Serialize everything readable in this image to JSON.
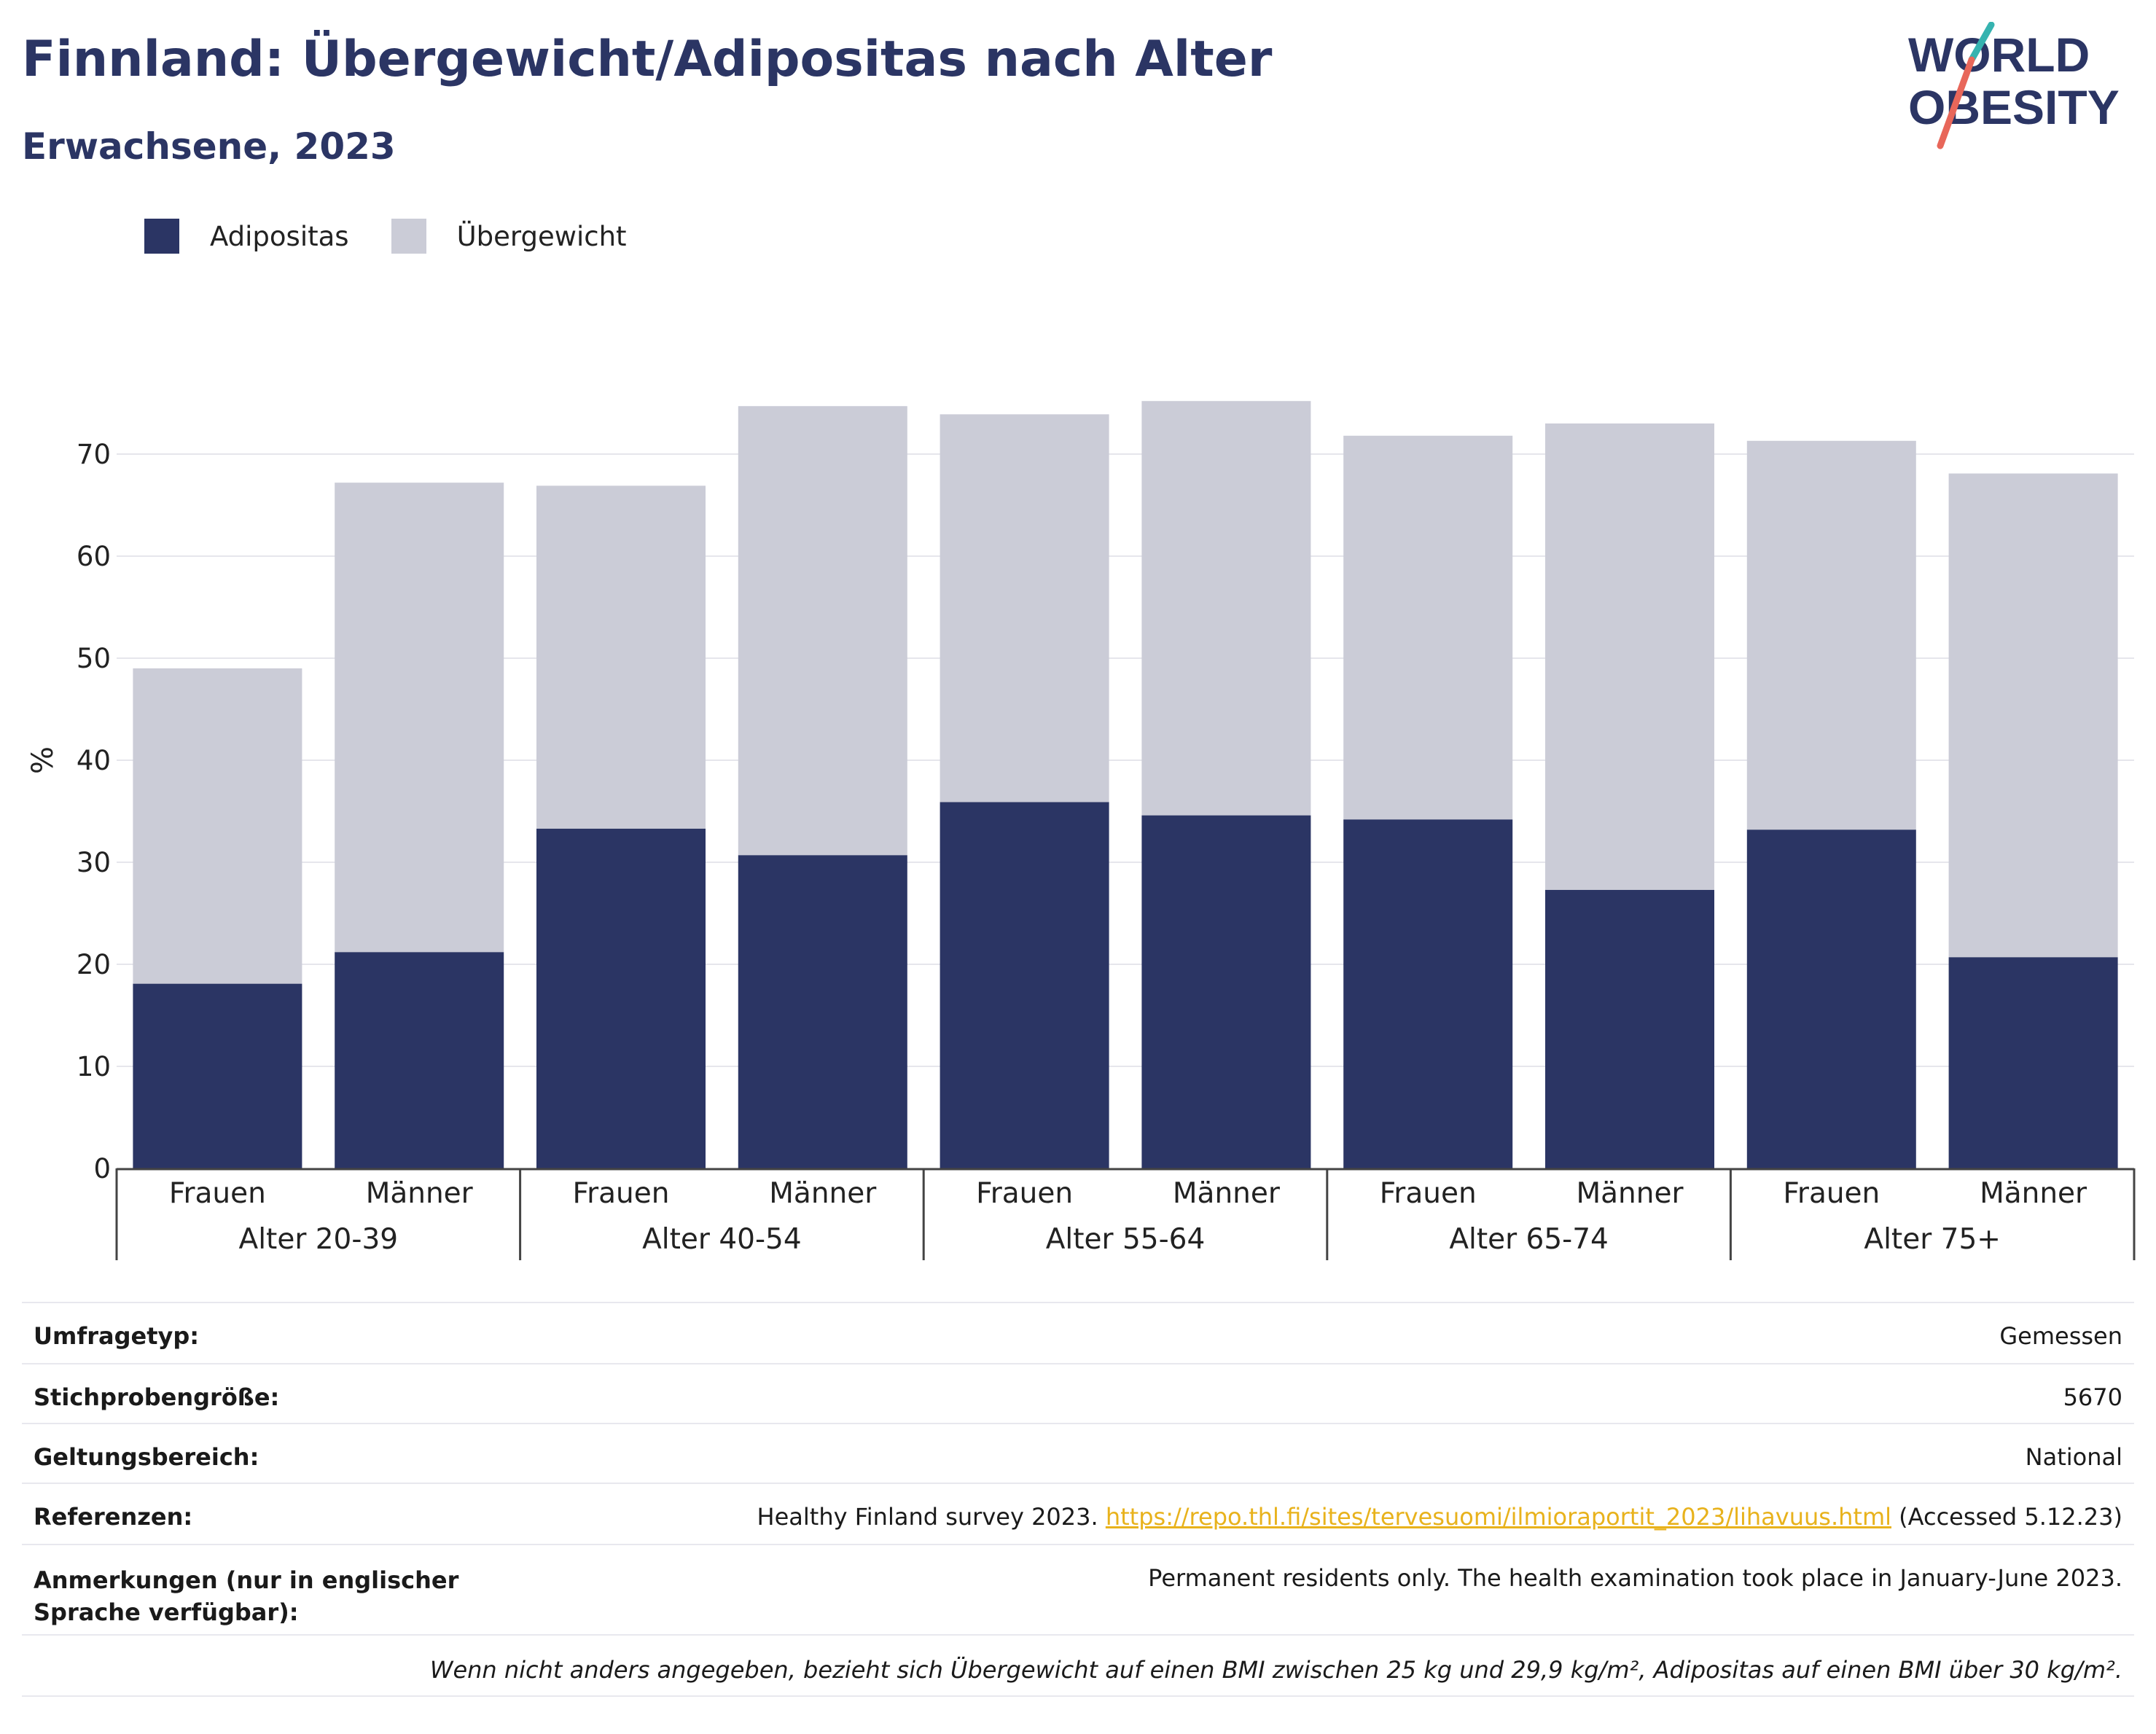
{
  "header": {
    "title": "Finnland: Übergewicht/Adipositas nach Alter",
    "subtitle": "Erwachsene, 2023"
  },
  "logo": {
    "line1": "WORLD",
    "line2": "OBESITY",
    "slash_color_top": "#36b3b0",
    "slash_color_bottom": "#e8675a"
  },
  "legend": {
    "items": [
      {
        "label": "Adipositas",
        "color": "#2b3564"
      },
      {
        "label": "Übergewicht",
        "color": "#cbccd7"
      }
    ]
  },
  "chart_data": {
    "type": "bar",
    "stacked": true,
    "ylabel": "%",
    "ylim": [
      0,
      80
    ],
    "yticks": [
      0,
      10,
      20,
      30,
      40,
      50,
      60,
      70
    ],
    "grid": true,
    "groups": [
      "Alter 20-39",
      "Alter 40-54",
      "Alter 55-64",
      "Alter 65-74",
      "Alter 75+"
    ],
    "categories": [
      "Frauen",
      "Männer",
      "Frauen",
      "Männer",
      "Frauen",
      "Männer",
      "Frauen",
      "Männer",
      "Frauen",
      "Männer"
    ],
    "series": [
      {
        "name": "Adipositas",
        "color": "#2b3564",
        "values": [
          18.1,
          21.2,
          33.3,
          30.7,
          35.9,
          34.6,
          34.2,
          27.3,
          33.2,
          20.7
        ]
      },
      {
        "name": "Übergewicht",
        "color": "#cbccd7",
        "values": [
          30.9,
          46.0,
          33.6,
          44.0,
          38.0,
          40.6,
          37.6,
          45.7,
          38.1,
          47.4
        ]
      }
    ]
  },
  "info": {
    "rows": [
      {
        "key": "Umfragetyp:",
        "value": "Gemessen"
      },
      {
        "key": "Stichprobengröße:",
        "value": "5670"
      },
      {
        "key": "Geltungsbereich:",
        "value": "National"
      }
    ],
    "references": {
      "key": "Referenzen:",
      "prefix": "Healthy Finland survey 2023. ",
      "link": "https://repo.thl.fi/sites/tervesuomi/ilmioraportit_2023/lihavuus.html",
      "suffix": " (Accessed 5.12.23)",
      "link_color": "#e8b21c"
    },
    "notes": {
      "key": "Anmerkungen (nur in englischer Sprache verfügbar):",
      "value": "Permanent residents only. The health examination took place in January-June 2023."
    },
    "footnote": "Wenn nicht anders angegeben, bezieht sich Übergewicht auf einen BMI zwischen 25 kg und 29,9 kg/m², Adipositas auf einen BMI über 30 kg/m²."
  }
}
